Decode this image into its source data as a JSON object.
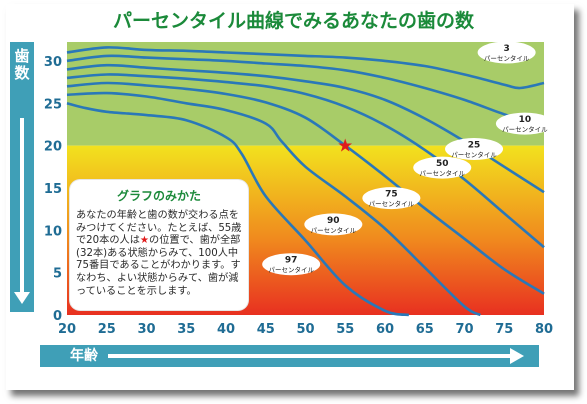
{
  "title": "パーセンタイル曲線でみるあなたの歯の数",
  "y_axis_title": "歯数",
  "x_axis_title": "年齢",
  "note": {
    "title": "グラフのみかた",
    "text_before_star": "あなたの年齢と歯の数が交わる点をみつけてください。たとえば、55歳で20本の人は",
    "star": "★",
    "text_after_star": "の位置で、歯が全部(32本)ある状態からみて、100人中75番目であることがわかります。すなわち、よい状態からみて、歯が減っていることを示します。"
  },
  "colors": {
    "line": "#2a78b8",
    "axis_bar": "#3f9fb7",
    "green_zone": "#a8cc68",
    "yellow": "#f2e21e",
    "orange": "#f08a1e",
    "red": "#e83020",
    "marker": "#e01b1b",
    "title": "#1b8a3a"
  },
  "chart_data": {
    "type": "line",
    "title": "パーセンタイル曲線でみるあなたの歯の数",
    "xlabel": "年齢",
    "ylabel": "歯数",
    "xlim": [
      20,
      80
    ],
    "ylim": [
      0,
      32
    ],
    "x_ticks": [
      "20",
      "25",
      "30",
      "35",
      "40",
      "45",
      "50",
      "55",
      "60",
      "65",
      "70",
      "75",
      "80"
    ],
    "y_ticks": [
      "0",
      "5",
      "10",
      "15",
      "20",
      "25",
      "30"
    ],
    "grid": false,
    "series": [
      {
        "name": "3 パーセンタイル",
        "label_lines": [
          "3",
          "パーセンタイル"
        ],
        "x": [
          20,
          25,
          30,
          35,
          40,
          45,
          50,
          55,
          60,
          65,
          70,
          75,
          77,
          80
        ],
        "y": [
          31,
          31.6,
          31.3,
          31.2,
          31,
          30.8,
          30.6,
          30.4,
          30,
          29.4,
          28.4,
          27.2,
          26.8,
          27.4
        ]
      },
      {
        "name": "10 パーセンタイル",
        "label_lines": [
          "10",
          "パーセンタイル"
        ],
        "x": [
          20,
          25,
          30,
          35,
          40,
          45,
          50,
          55,
          60,
          65,
          70,
          75,
          78,
          80
        ],
        "y": [
          30,
          30.6,
          30.4,
          30.2,
          30,
          29.7,
          29.4,
          28.9,
          28,
          26.8,
          25.4,
          23.7,
          22.9,
          23.2
        ]
      },
      {
        "name": "25 パーセンタイル",
        "label_lines": [
          "25",
          "パーセンタイル"
        ],
        "x": [
          20,
          25,
          30,
          35,
          40,
          45,
          50,
          55,
          60,
          65,
          70,
          75,
          80
        ],
        "y": [
          29,
          29.5,
          29.2,
          28.9,
          28.6,
          28.2,
          27.6,
          26.8,
          25.4,
          23.2,
          20.5,
          17.5,
          14.5
        ]
      },
      {
        "name": "50 パーセンタイル",
        "label_lines": [
          "50",
          "パーセンタイル"
        ],
        "x": [
          20,
          25,
          30,
          35,
          40,
          45,
          50,
          55,
          60,
          65,
          70,
          75,
          80
        ],
        "y": [
          28,
          28.4,
          28.2,
          27.9,
          27.5,
          27,
          26.1,
          24.6,
          22.4,
          19.5,
          16,
          12,
          8
        ]
      },
      {
        "name": "75 パーセンタイル",
        "label_lines": [
          "75",
          "パーセンタイル"
        ],
        "x": [
          20,
          25,
          30,
          35,
          40,
          45,
          50,
          55,
          60,
          65,
          70,
          75,
          80
        ],
        "y": [
          27,
          27.4,
          27.1,
          26.7,
          26.1,
          25.1,
          23.3,
          20,
          16.4,
          12.6,
          9,
          5.4,
          2.5
        ]
      },
      {
        "name": "90 パーセンタイル",
        "label_lines": [
          "90",
          "パーセンタイル"
        ],
        "x": [
          20,
          25,
          30,
          35,
          40,
          45,
          47,
          50,
          55,
          60,
          65,
          70,
          72
        ],
        "y": [
          26,
          26.2,
          25.8,
          25,
          24.2,
          22.6,
          20.5,
          17.5,
          14,
          10.2,
          5.6,
          1,
          0
        ]
      },
      {
        "name": "97 パーセンタイル",
        "label_lines": [
          "97",
          "パーセンタイル"
        ],
        "x": [
          20,
          22,
          25,
          30,
          35,
          40,
          42,
          45,
          50,
          55,
          60,
          63
        ],
        "y": [
          25,
          24.5,
          24,
          23.6,
          23,
          21,
          19,
          14,
          8.8,
          3.5,
          0.5,
          0
        ]
      }
    ],
    "label_anchors": [
      {
        "series": "3 パーセンタイル",
        "x": 75.3,
        "y": 31.0
      },
      {
        "series": "10 パーセンタイル",
        "x": 77.6,
        "y": 22.6
      },
      {
        "series": "25 パーセンタイル",
        "x": 71.2,
        "y": 19.6
      },
      {
        "series": "50 パーセンタイル",
        "x": 67.2,
        "y": 17.4
      },
      {
        "series": "75 パーセンタイル",
        "x": 60.8,
        "y": 13.8
      },
      {
        "series": "90 パーセンタイル",
        "x": 53.5,
        "y": 10.7
      },
      {
        "series": "97 パーセンタイル",
        "x": 48.2,
        "y": 6.0
      }
    ],
    "marker": {
      "age": 55,
      "teeth": 20,
      "symbol": "★"
    },
    "background_zones": [
      {
        "from": 20,
        "to": 32,
        "fill": "green"
      },
      {
        "from": 0,
        "to": 20,
        "fill": "gradient: yellow (top) to red (bottom)"
      }
    ]
  }
}
